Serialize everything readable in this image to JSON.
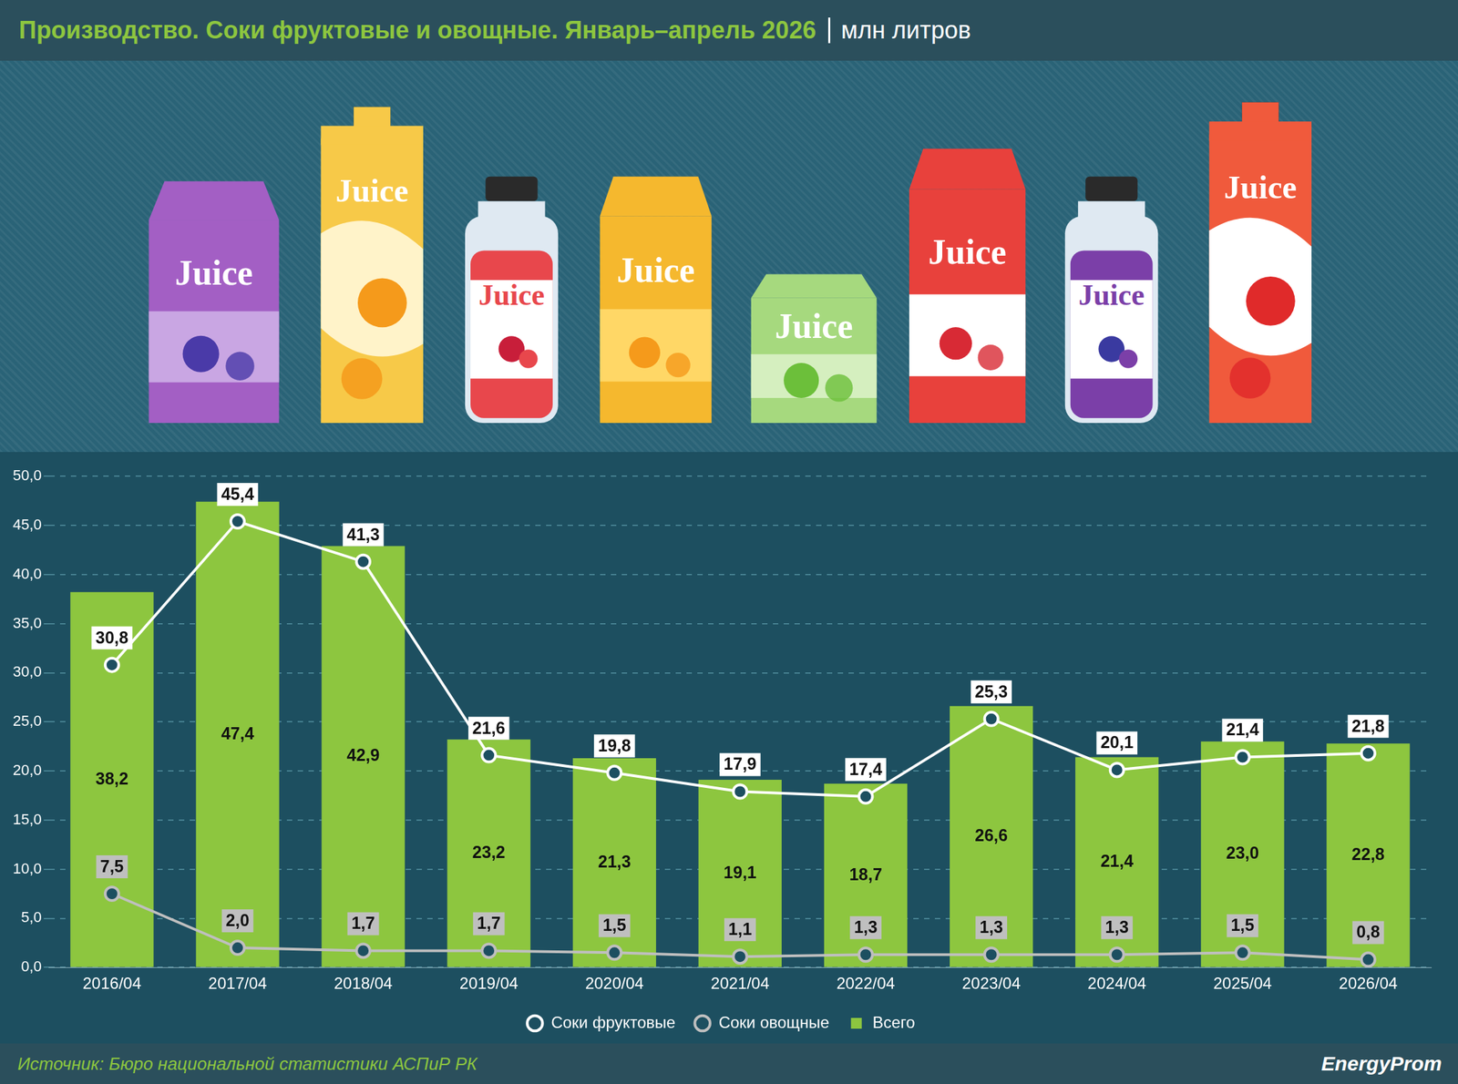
{
  "chart_data": {
    "type": "bar",
    "title": "Производство. Соки фруктовые и овощные. Январь–апрель 2026",
    "subtitle": "млн литров",
    "categories": [
      "2016/04",
      "2017/04",
      "2018/04",
      "2019/04",
      "2020/04",
      "2021/04",
      "2022/04",
      "2023/04",
      "2024/04",
      "2025/04",
      "2026/04"
    ],
    "series": [
      {
        "name": "Всего",
        "type": "bar",
        "color": "#8dc63f",
        "values": [
          38.2,
          47.4,
          42.9,
          23.2,
          21.3,
          19.1,
          18.7,
          26.6,
          21.4,
          23.0,
          22.8
        ],
        "value_labels": [
          "38,2",
          "47,4",
          "42,9",
          "23,2",
          "21,3",
          "19,1",
          "18,7",
          "26,6",
          "21,4",
          "23,0",
          "22,8"
        ]
      },
      {
        "name": "Соки овощные",
        "type": "line",
        "color": "#bfbfbf",
        "marker": "circle",
        "values": [
          7.5,
          2.0,
          1.7,
          1.7,
          1.5,
          1.1,
          1.3,
          1.3,
          1.3,
          1.5,
          0.8
        ],
        "value_labels": [
          "7,5",
          "2,0",
          "1,7",
          "1,7",
          "1,5",
          "1,1",
          "1,3",
          "1,3",
          "1,3",
          "1,5",
          "0,8"
        ]
      },
      {
        "name": "Соки фруктовые",
        "type": "line",
        "color": "#ffffff",
        "marker": "circle",
        "values": [
          30.8,
          45.4,
          41.3,
          21.6,
          19.8,
          17.9,
          17.4,
          25.3,
          20.1,
          21.4,
          21.8
        ],
        "value_labels": [
          "30,8",
          "45,4",
          "41,3",
          "21,6",
          "19,8",
          "17,9",
          "17,4",
          "25,3",
          "20,1",
          "21,4",
          "21,8"
        ]
      }
    ],
    "ylim": [
      0,
      50
    ],
    "yticks": [
      {
        "value": 0,
        "label": "0,0"
      },
      {
        "value": 5,
        "label": "5,0"
      },
      {
        "value": 10,
        "label": "10,0"
      },
      {
        "value": 15,
        "label": "15,0"
      },
      {
        "value": 20,
        "label": "20,0"
      },
      {
        "value": 25,
        "label": "25,0"
      },
      {
        "value": 30,
        "label": "30,0"
      },
      {
        "value": 35,
        "label": "35,0"
      },
      {
        "value": 40,
        "label": "40,0"
      },
      {
        "value": 45,
        "label": "45,0"
      },
      {
        "value": 50,
        "label": "50,0"
      }
    ],
    "grid": true,
    "legend": "bottom",
    "data_labels": true
  },
  "illustration_label": "Juice",
  "source": "Источник: Бюро национальной статистики АСПиР РК",
  "brand": "EnergyProm"
}
